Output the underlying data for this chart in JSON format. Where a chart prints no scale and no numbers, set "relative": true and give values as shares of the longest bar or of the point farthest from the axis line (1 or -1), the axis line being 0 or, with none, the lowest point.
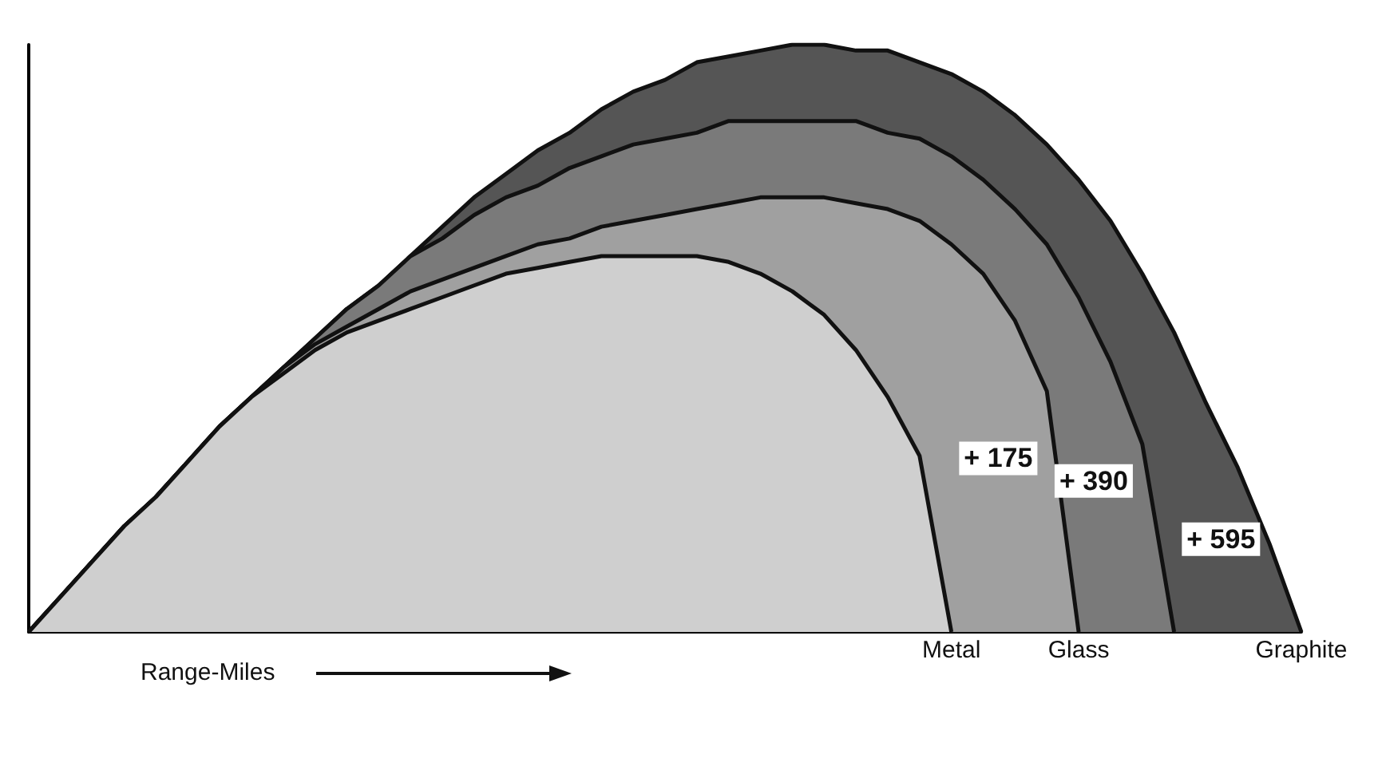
{
  "chart_data": {
    "type": "area",
    "relative": true,
    "xlabel": "Range-Miles",
    "legend": false,
    "grid": false,
    "marker": "none",
    "categories": [
      null,
      null,
      null,
      null,
      null,
      null,
      null,
      null,
      null,
      null,
      null,
      null,
      null,
      null,
      null,
      null,
      null,
      null,
      null,
      null,
      null,
      null,
      null,
      null,
      null,
      null,
      null,
      null,
      null,
      null,
      null,
      null,
      null,
      null,
      null,
      null,
      null,
      null,
      null,
      null,
      null
    ],
    "series": [
      {
        "name": "Graphite",
        "color": "#555555",
        "values": [
          0,
          0.06,
          0.12,
          0.18,
          0.23,
          0.29,
          0.35,
          0.4,
          0.45,
          0.5,
          0.55,
          0.59,
          0.64,
          0.69,
          0.74,
          0.78,
          0.82,
          0.85,
          0.89,
          0.92,
          0.94,
          0.97,
          0.98,
          0.99,
          1,
          1,
          0.99,
          0.99,
          0.97,
          0.95,
          0.92,
          0.88,
          0.83,
          0.77,
          0.7,
          0.61,
          0.51,
          0.39,
          0.28,
          0.15,
          0
        ]
      },
      {
        "color": "#7a7a7a",
        "values": [
          0,
          0.06,
          0.12,
          0.18,
          0.23,
          0.29,
          0.35,
          0.4,
          0.45,
          0.5,
          0.55,
          0.59,
          0.64,
          0.67,
          0.71,
          0.74,
          0.76,
          0.79,
          0.81,
          0.83,
          0.84,
          0.85,
          0.87,
          0.87,
          0.87,
          0.87,
          0.87,
          0.85,
          0.84,
          0.81,
          0.77,
          0.72,
          0.66,
          0.57,
          0.46,
          0.32,
          0,
          null,
          null,
          null,
          null
        ]
      },
      {
        "name": "Glass",
        "color": "#a0a0a0",
        "values": [
          0,
          0.06,
          0.12,
          0.18,
          0.23,
          0.29,
          0.35,
          0.4,
          0.45,
          0.49,
          0.52,
          0.55,
          0.58,
          0.6,
          0.62,
          0.64,
          0.66,
          0.67,
          0.69,
          0.7,
          0.71,
          0.72,
          0.73,
          0.74,
          0.74,
          0.74,
          0.73,
          0.72,
          0.7,
          0.66,
          0.61,
          0.53,
          0.41,
          0,
          null,
          null,
          null,
          null,
          null,
          null,
          null
        ]
      },
      {
        "name": "Metal",
        "color": "#cfcfcf",
        "values": [
          0,
          0.06,
          0.12,
          0.18,
          0.23,
          0.29,
          0.35,
          0.4,
          0.44,
          0.48,
          0.51,
          0.53,
          0.55,
          0.57,
          0.59,
          0.61,
          0.62,
          0.63,
          0.64,
          0.64,
          0.64,
          0.64,
          0.63,
          0.61,
          0.58,
          0.54,
          0.48,
          0.4,
          0.3,
          0,
          null,
          null,
          null,
          null,
          null,
          null,
          null,
          null,
          null,
          null,
          null
        ]
      }
    ],
    "annotations": [
      "+ 175",
      "+ 390",
      "+ 595"
    ]
  }
}
